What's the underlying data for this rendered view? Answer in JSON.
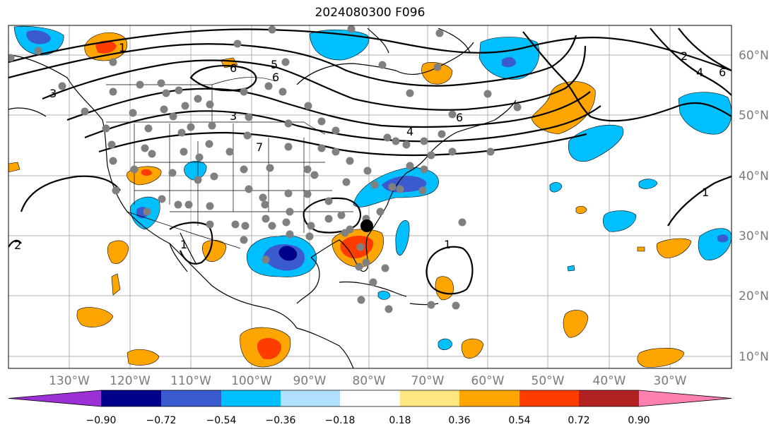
{
  "title": "2024080300 F096",
  "lon_labels": [
    "130°W",
    "120°W",
    "110°W",
    "100°W",
    "90°W",
    "80°W",
    "70°W",
    "60°W",
    "50°W",
    "40°W",
    "30°W"
  ],
  "lat_labels": [
    "60°N",
    "50°N",
    "40°N",
    "30°N",
    "20°N",
    "10°N"
  ],
  "colorbar": {
    "ticks": [
      "−0.90",
      "−0.72",
      "−0.54",
      "−0.36",
      "−0.18",
      "0.18",
      "0.36",
      "0.54",
      "0.72",
      "0.90"
    ],
    "colors": [
      "#9b30d6",
      "#00008b",
      "#3a5bd0",
      "#00bfff",
      "#b0e0ff",
      "#ffffff",
      "#ffe680",
      "#ffa500",
      "#ff3c00",
      "#b22222",
      "#ff7fb0"
    ]
  },
  "contour_labels": [
    "1",
    "1",
    "2",
    "3",
    "3",
    "4",
    "4",
    "5",
    "6",
    "6",
    "6",
    "6",
    "7",
    "1",
    "1",
    "2"
  ],
  "marker": "black-dot"
}
